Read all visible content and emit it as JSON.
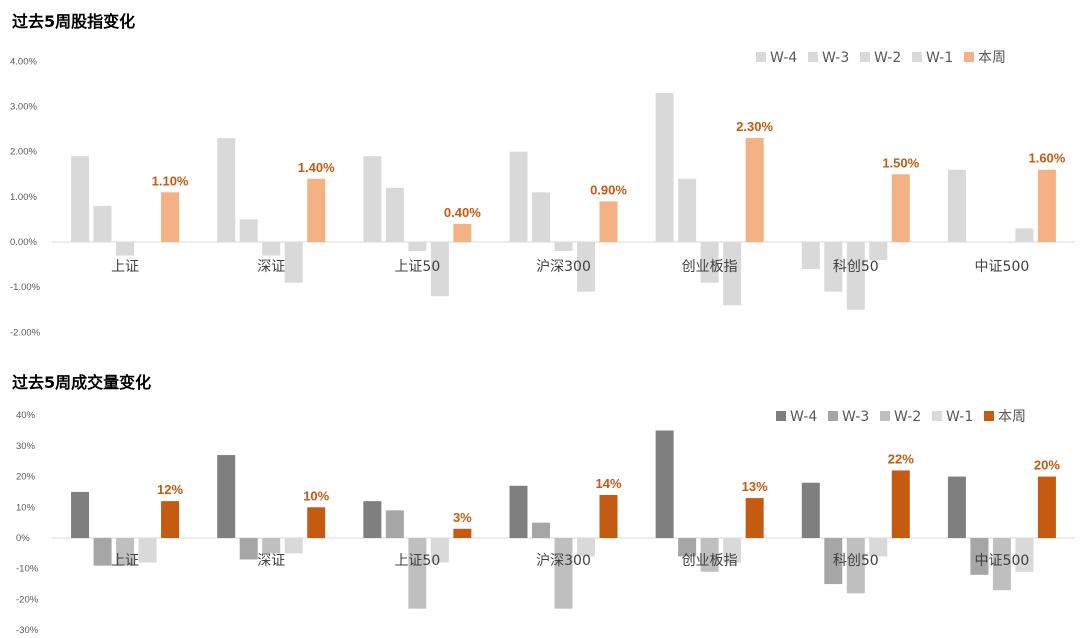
{
  "chart_data": [
    {
      "type": "bar",
      "title": "过去5周股指变化",
      "categories": [
        "上证",
        "深证",
        "上证50",
        "沪深300",
        "创业板指",
        "科创50",
        "中证500"
      ],
      "ylim": [
        -2.0,
        4.0
      ],
      "yticks": [
        "4.00%",
        "3.00%",
        "2.00%",
        "1.00%",
        "0.00%",
        "-1.00%",
        "-2.00%"
      ],
      "ytick_values": [
        4,
        3,
        2,
        1,
        0,
        -1,
        -2
      ],
      "grid": false,
      "legend_position": "top-right",
      "series": [
        {
          "name": "W-4",
          "color": "#d9d9d9",
          "values": [
            1.9,
            2.3,
            1.9,
            2.0,
            3.3,
            -0.6,
            1.6
          ]
        },
        {
          "name": "W-3",
          "color": "#d9d9d9",
          "values": [
            0.8,
            0.5,
            1.2,
            1.1,
            1.4,
            -1.1,
            0.0
          ]
        },
        {
          "name": "W-2",
          "color": "#d9d9d9",
          "values": [
            -0.3,
            -0.3,
            -0.2,
            -0.2,
            -0.9,
            -1.5,
            0.0
          ]
        },
        {
          "name": "W-1",
          "color": "#d9d9d9",
          "values": [
            0.0,
            -0.9,
            -1.2,
            -1.1,
            -1.4,
            -0.4,
            0.3
          ]
        },
        {
          "name": "本周",
          "color": "#f4b183",
          "values": [
            1.1,
            1.4,
            0.4,
            0.9,
            2.3,
            1.5,
            1.6
          ]
        }
      ],
      "data_labels": [
        "1.10%",
        "1.40%",
        "0.40%",
        "0.90%",
        "2.30%",
        "1.50%",
        "1.60%"
      ],
      "data_label_color": "#c55a11"
    },
    {
      "type": "bar",
      "title": "过去5周成交量变化",
      "categories": [
        "上证",
        "深证",
        "上证50",
        "沪深300",
        "创业板指",
        "科创50",
        "中证500"
      ],
      "ylim": [
        -30,
        40
      ],
      "yticks": [
        "40%",
        "30%",
        "20%",
        "10%",
        "0%",
        "-10%",
        "-20%",
        "-30%"
      ],
      "ytick_values": [
        40,
        30,
        20,
        10,
        0,
        -10,
        -20,
        -30
      ],
      "grid": false,
      "legend_position": "top-right",
      "series": [
        {
          "name": "W-4",
          "color": "#7f7f7f",
          "values": [
            15,
            27,
            12,
            17,
            35,
            18,
            20
          ]
        },
        {
          "name": "W-3",
          "color": "#a6a6a6",
          "values": [
            -9,
            -7,
            9,
            5,
            -6,
            -15,
            -12
          ]
        },
        {
          "name": "W-2",
          "color": "#bfbfbf",
          "values": [
            -9,
            -5,
            -23,
            -23,
            -11,
            -18,
            -17
          ]
        },
        {
          "name": "W-1",
          "color": "#d9d9d9",
          "values": [
            -8,
            -5,
            -8,
            -6,
            -8,
            -6,
            -11
          ]
        },
        {
          "name": "本周",
          "color": "#c55a11",
          "values": [
            12,
            10,
            3,
            14,
            13,
            22,
            20
          ]
        }
      ],
      "data_labels": [
        "12%",
        "10%",
        "3%",
        "14%",
        "13%",
        "22%",
        "20%"
      ],
      "data_label_color": "#c55a11"
    }
  ]
}
